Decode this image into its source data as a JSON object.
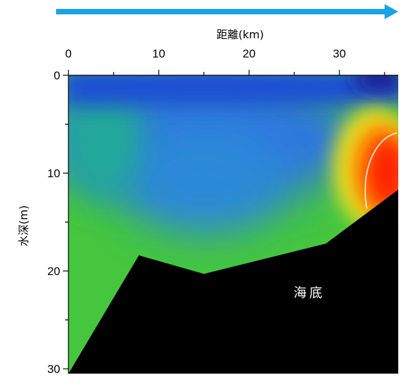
{
  "chart_data": {
    "type": "heatmap",
    "title": "",
    "xlabel": "距離(km)",
    "ylabel": "水深(m)",
    "xlim": [
      0,
      36.5
    ],
    "ylim": [
      0,
      30.5
    ],
    "x_ticks": [
      0,
      10,
      20,
      30
    ],
    "y_ticks": [
      0,
      10,
      20,
      30
    ],
    "x_tick_labels": [
      "0",
      "10",
      "20",
      "30"
    ],
    "y_tick_labels": [
      "0",
      "10",
      "20",
      "30"
    ],
    "direction_arrow_color": "#1aa3e8",
    "seabed_label": "海底",
    "seabed_color": "#000000",
    "seabed_profile": [
      {
        "x": 0,
        "depth": 30.5
      },
      {
        "x": 7.8,
        "depth": 18.4
      },
      {
        "x": 15.0,
        "depth": 20.3
      },
      {
        "x": 28.5,
        "depth": 17.2
      },
      {
        "x": 36.5,
        "depth": 11.7
      }
    ],
    "color_scale": [
      "#20208a",
      "#1e4fd6",
      "#2f86e8",
      "#18b090",
      "#3bc43b",
      "#66d23a",
      "#f2e51f",
      "#ff8a00",
      "#ff2000"
    ],
    "field_regions": [
      {
        "name": "surface-blue",
        "x_range": [
          0,
          36.5
        ],
        "depth_range": [
          0,
          3
        ],
        "level": "low"
      },
      {
        "name": "mid-blue",
        "x_range": [
          3,
          28
        ],
        "depth_range": [
          3,
          14
        ],
        "level": "low-mid"
      },
      {
        "name": "green-water",
        "x_range": [
          0,
          28
        ],
        "depth_range": [
          8,
          30
        ],
        "level": "mid"
      },
      {
        "name": "warm-core",
        "x_center": 35.5,
        "depth_center": 9.5,
        "level": "high"
      }
    ],
    "contour_line_color": "#ffffff"
  }
}
